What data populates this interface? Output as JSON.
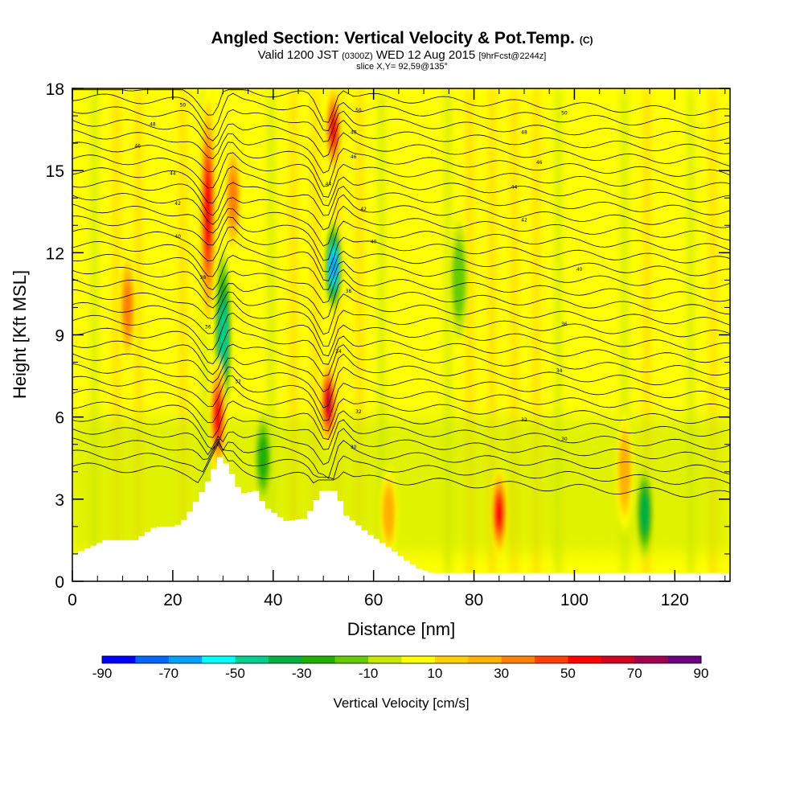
{
  "header": {
    "title": "Angled Section: Vertical Velocity & Pot.Temp.",
    "title_unit": "(C)",
    "valid_prefix": "Valid 1200 JST",
    "valid_utc": "(0300Z)",
    "valid_date": "WED 12 Aug 2015",
    "forecast_info": "[9hrFcst@2244z]",
    "slice_info": "slice X,Y= 92,59@135°"
  },
  "chart_data": {
    "type": "heatmap",
    "xlabel": "Distance [nm]",
    "ylabel": "Height [Kft MSL]",
    "xlim": [
      0,
      131
    ],
    "ylim": [
      0,
      18
    ],
    "x_ticks": [
      0,
      20,
      40,
      60,
      80,
      100,
      120
    ],
    "y_ticks": [
      0,
      3,
      6,
      9,
      12,
      15,
      18
    ],
    "colorbar": {
      "label": "Vertical Velocity [cm/s]",
      "range": [
        -90,
        90
      ],
      "step": 10,
      "tick_labels": [
        "-90",
        "-70",
        "-50",
        "-30",
        "-10",
        "10",
        "30",
        "50",
        "70",
        "90"
      ],
      "colors": [
        "#0000ff",
        "#0066ff",
        "#00a0ff",
        "#00ffff",
        "#00d08c",
        "#00b040",
        "#20b000",
        "#66cc00",
        "#c8e800",
        "#ffff00",
        "#ffd000",
        "#ffb000",
        "#ff8000",
        "#ff4000",
        "#ff0000",
        "#d00020",
        "#a00050",
        "#6a0080"
      ]
    },
    "terrain_kft": [
      [
        0,
        1
      ],
      [
        6,
        1.5
      ],
      [
        12,
        1.5
      ],
      [
        16,
        2
      ],
      [
        20,
        2
      ],
      [
        22,
        2.3
      ],
      [
        26,
        3.5
      ],
      [
        29,
        4.6
      ],
      [
        31,
        4
      ],
      [
        33,
        3.2
      ],
      [
        36,
        3.3
      ],
      [
        38,
        2.7
      ],
      [
        42,
        2.2
      ],
      [
        46,
        2.3
      ],
      [
        49,
        3.3
      ],
      [
        52,
        3.3
      ],
      [
        54,
        2.4
      ],
      [
        58,
        1.8
      ],
      [
        62,
        1.3
      ],
      [
        68,
        0.5
      ],
      [
        71,
        0.3
      ],
      [
        131,
        0.3
      ]
    ],
    "updrafts": [
      {
        "x": 27,
        "z0": 9,
        "z1": 18,
        "w": 60
      },
      {
        "x": 29,
        "z0": 4,
        "z1": 8,
        "w": 55
      },
      {
        "x": 32,
        "z0": 12,
        "z1": 16,
        "w": 40
      },
      {
        "x": 51,
        "z0": 5,
        "z1": 8,
        "w": 70
      },
      {
        "x": 52,
        "z0": 15,
        "z1": 18,
        "w": 60
      },
      {
        "x": 11,
        "z0": 8,
        "z1": 12,
        "w": 35
      },
      {
        "x": 85,
        "z0": 1,
        "z1": 4,
        "w": 60
      },
      {
        "x": 63,
        "z0": 1,
        "z1": 4,
        "w": 30
      },
      {
        "x": 110,
        "z0": 2,
        "z1": 6,
        "w": 30
      }
    ],
    "downdrafts": [
      {
        "x": 30,
        "z0": 6,
        "z1": 12,
        "w": -50
      },
      {
        "x": 52,
        "z0": 10,
        "z1": 13,
        "w": -70
      },
      {
        "x": 114,
        "z0": 1,
        "z1": 4,
        "w": -40
      },
      {
        "x": 38,
        "z0": 3,
        "z1": 6,
        "w": -25
      },
      {
        "x": 77,
        "z0": 9,
        "z1": 13,
        "w": -20
      }
    ],
    "isotherm_labels": [
      {
        "text": "50",
        "x": 22,
        "z": 17.4
      },
      {
        "text": "50",
        "x": 57,
        "z": 17.2
      },
      {
        "text": "50",
        "x": 98,
        "z": 17.1
      },
      {
        "text": "48",
        "x": 16,
        "z": 16.7
      },
      {
        "text": "48",
        "x": 56,
        "z": 16.4
      },
      {
        "text": "48",
        "x": 90,
        "z": 16.4
      },
      {
        "text": "46",
        "x": 13,
        "z": 15.9
      },
      {
        "text": "46",
        "x": 56,
        "z": 15.5
      },
      {
        "text": "46",
        "x": 93,
        "z": 15.3
      },
      {
        "text": "44",
        "x": 20,
        "z": 14.9
      },
      {
        "text": "44",
        "x": 51,
        "z": 14.5
      },
      {
        "text": "44",
        "x": 88,
        "z": 14.4
      },
      {
        "text": "42",
        "x": 21,
        "z": 13.8
      },
      {
        "text": "42",
        "x": 58,
        "z": 13.6
      },
      {
        "text": "42",
        "x": 90,
        "z": 13.2
      },
      {
        "text": "40",
        "x": 21,
        "z": 12.6
      },
      {
        "text": "40",
        "x": 60,
        "z": 12.4
      },
      {
        "text": "40",
        "x": 101,
        "z": 11.4
      },
      {
        "text": "38",
        "x": 26,
        "z": 11.1
      },
      {
        "text": "38",
        "x": 55,
        "z": 10.6
      },
      {
        "text": "36",
        "x": 27,
        "z": 9.3
      },
      {
        "text": "36",
        "x": 98,
        "z": 9.4
      },
      {
        "text": "34",
        "x": 53,
        "z": 8.4
      },
      {
        "text": "34",
        "x": 97,
        "z": 7.7
      },
      {
        "text": "32",
        "x": 33,
        "z": 7.3
      },
      {
        "text": "32",
        "x": 57,
        "z": 6.2
      },
      {
        "text": "32",
        "x": 90,
        "z": 5.9
      },
      {
        "text": "30",
        "x": 56,
        "z": 4.9
      },
      {
        "text": "30",
        "x": 98,
        "z": 5.2
      }
    ]
  }
}
